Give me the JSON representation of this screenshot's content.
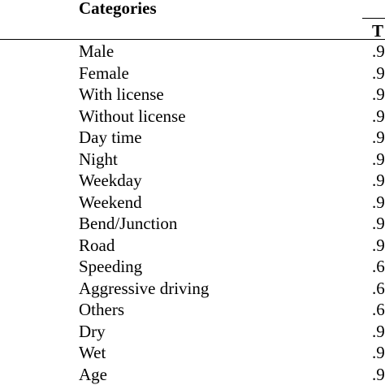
{
  "table": {
    "header_categories": "Categories",
    "header_t": "T",
    "rows": [
      {
        "category": "Male",
        "value": ".9"
      },
      {
        "category": "Female",
        "value": ".9"
      },
      {
        "category": "With license",
        "value": ".9"
      },
      {
        "category": "Without license",
        "value": ".9"
      },
      {
        "category": "Day time",
        "value": ".9"
      },
      {
        "category": "Night",
        "value": ".9"
      },
      {
        "category": "Weekday",
        "value": ".9"
      },
      {
        "category": "Weekend",
        "value": ".9"
      },
      {
        "category": "Bend/Junction",
        "value": ".9"
      },
      {
        "category": "Road",
        "value": ".9"
      },
      {
        "category": "Speeding",
        "value": ".6"
      },
      {
        "category": "Aggressive driving",
        "value": ".6"
      },
      {
        "category": "Others",
        "value": ".6"
      },
      {
        "category": "Dry",
        "value": ".9"
      },
      {
        "category": "Wet",
        "value": ".9"
      },
      {
        "category": "Age",
        "value": ".9"
      }
    ]
  }
}
